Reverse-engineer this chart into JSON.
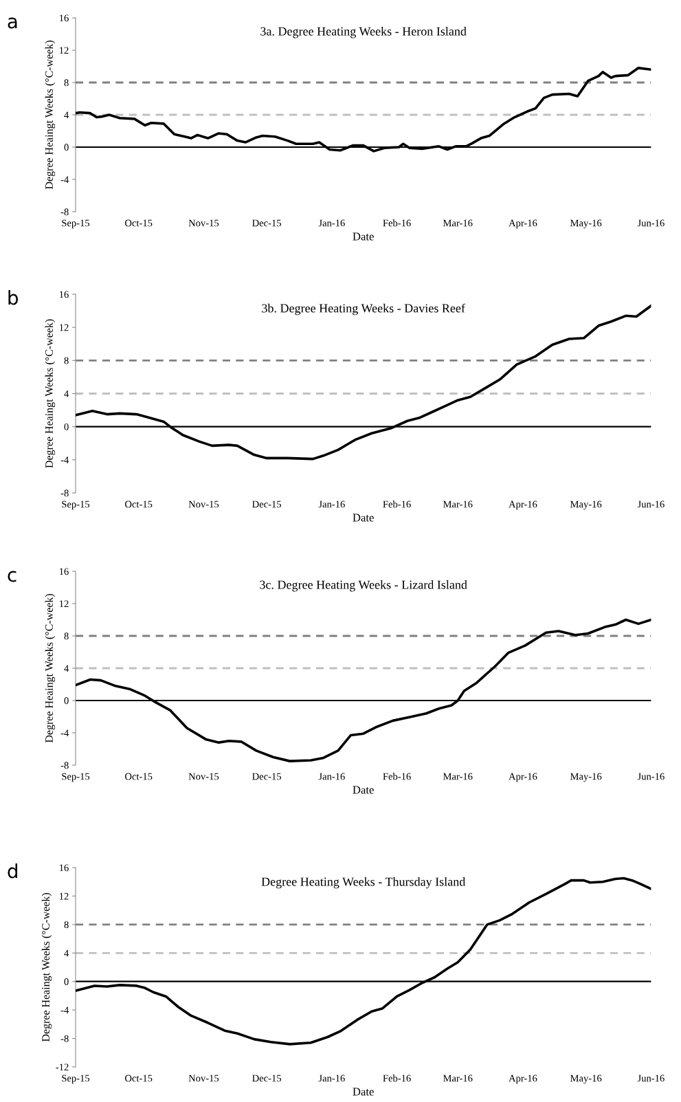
{
  "chart_data": [
    {
      "type": "line",
      "title": "3a. Degree Heating Weeks - Heron Island",
      "xlabel": "Date",
      "ylabel": "Degree Heaingt Weeks (°C-week)",
      "annotations": [
        "a"
      ],
      "ylim": [
        -8,
        16
      ],
      "yticks": [
        -8,
        -4,
        0,
        4,
        8,
        12,
        16
      ],
      "xlim": [
        "2015-09-01",
        "2016-06-01"
      ],
      "xticks": [
        {
          "value": "2015-09-01",
          "label": "Sep-15"
        },
        {
          "value": "2015-10-01",
          "label": "Oct-15"
        },
        {
          "value": "2015-11-01",
          "label": "Nov-15"
        },
        {
          "value": "2015-12-01",
          "label": "Dec-15"
        },
        {
          "value": "2016-01-01",
          "label": "Jan-16"
        },
        {
          "value": "2016-02-01",
          "label": "Feb-16"
        },
        {
          "value": "2016-03-01",
          "label": "Mar-16"
        },
        {
          "value": "2016-04-01",
          "label": "Apr-16"
        },
        {
          "value": "2016-05-01",
          "label": "May-16"
        },
        {
          "value": "2016-06-01",
          "label": "Jun-16"
        }
      ],
      "grid": false,
      "legend": false,
      "marker": "none",
      "line_style": "solid",
      "ref_lines": [
        {
          "axis": "y",
          "value": 0,
          "color": "#000000",
          "line_style": "solid"
        },
        {
          "axis": "y",
          "value": 4,
          "color": "#c0c0c0",
          "line_style": "dashed"
        },
        {
          "axis": "y",
          "value": 8,
          "color": "#808080",
          "line_style": "dashed"
        }
      ],
      "series": [
        {
          "color": "#000000",
          "x": [
            "2015-09-01",
            "2015-09-03",
            "2015-09-08",
            "2015-09-11",
            "2015-09-14",
            "2015-09-17",
            "2015-09-22",
            "2015-09-29",
            "2015-10-04",
            "2015-10-07",
            "2015-10-13",
            "2015-10-18",
            "2015-10-23",
            "2015-10-26",
            "2015-10-29",
            "2015-11-03",
            "2015-11-08",
            "2015-11-12",
            "2015-11-17",
            "2015-11-21",
            "2015-11-26",
            "2015-11-29",
            "2015-12-05",
            "2015-12-11",
            "2015-12-15",
            "2015-12-23",
            "2015-12-26",
            "2015-12-31",
            "2016-01-05",
            "2016-01-11",
            "2016-01-16",
            "2016-01-21",
            "2016-01-26",
            "2016-02-02",
            "2016-02-04",
            "2016-02-07",
            "2016-02-13",
            "2016-02-21",
            "2016-02-25",
            "2016-02-29",
            "2016-03-05",
            "2016-03-08",
            "2016-03-12",
            "2016-03-16",
            "2016-03-23",
            "2016-03-28",
            "2016-04-03",
            "2016-04-07",
            "2016-04-11",
            "2016-04-15",
            "2016-04-23",
            "2016-04-27",
            "2016-05-02",
            "2016-05-07",
            "2016-05-09",
            "2016-05-13",
            "2016-05-15",
            "2016-05-21",
            "2016-05-26",
            "2016-06-01"
          ],
          "values": [
            4.2,
            4.3,
            4.2,
            3.7,
            3.8,
            4.0,
            3.6,
            3.5,
            2.7,
            3.0,
            2.9,
            1.6,
            1.3,
            1.1,
            1.5,
            1.1,
            1.7,
            1.6,
            0.8,
            0.6,
            1.2,
            1.4,
            1.3,
            0.8,
            0.4,
            0.4,
            0.6,
            -0.3,
            -0.4,
            0.2,
            0.2,
            -0.5,
            -0.1,
            0.0,
            0.4,
            -0.1,
            -0.2,
            0.1,
            -0.3,
            0.1,
            0.1,
            0.5,
            1.1,
            1.4,
            2.9,
            3.7,
            4.4,
            4.8,
            6.1,
            6.5,
            6.6,
            6.3,
            8.2,
            8.8,
            9.3,
            8.6,
            8.8,
            8.9,
            9.8,
            9.6
          ]
        }
      ]
    },
    {
      "type": "line",
      "title": "3b. Degree Heating Weeks - Davies Reef",
      "xlabel": "Date",
      "ylabel": "Degree Heaingt Weeks (°C-week)",
      "annotations": [
        "b"
      ],
      "ylim": [
        -8,
        16
      ],
      "yticks": [
        -8,
        -4,
        0,
        4,
        8,
        12,
        16
      ],
      "xlim": [
        "2015-09-01",
        "2016-06-01"
      ],
      "xticks": [
        {
          "value": "2015-09-01",
          "label": "Sep-15"
        },
        {
          "value": "2015-10-01",
          "label": "Oct-15"
        },
        {
          "value": "2015-11-01",
          "label": "Nov-15"
        },
        {
          "value": "2015-12-01",
          "label": "Dec-15"
        },
        {
          "value": "2016-01-01",
          "label": "Jan-16"
        },
        {
          "value": "2016-02-01",
          "label": "Feb-16"
        },
        {
          "value": "2016-03-01",
          "label": "Mar-16"
        },
        {
          "value": "2016-04-01",
          "label": "Apr-16"
        },
        {
          "value": "2016-05-01",
          "label": "May-16"
        },
        {
          "value": "2016-06-01",
          "label": "Jun-16"
        }
      ],
      "grid": false,
      "legend": false,
      "marker": "none",
      "line_style": "solid",
      "ref_lines": [
        {
          "axis": "y",
          "value": 0,
          "color": "#000000",
          "line_style": "solid"
        },
        {
          "axis": "y",
          "value": 4,
          "color": "#c0c0c0",
          "line_style": "dashed"
        },
        {
          "axis": "y",
          "value": 8,
          "color": "#808080",
          "line_style": "dashed"
        }
      ],
      "series": [
        {
          "color": "#000000",
          "x": [
            "2015-09-01",
            "2015-09-09",
            "2015-09-16",
            "2015-09-22",
            "2015-09-30",
            "2015-10-06",
            "2015-10-13",
            "2015-10-16",
            "2015-10-22",
            "2015-10-30",
            "2015-11-05",
            "2015-11-13",
            "2015-11-17",
            "2015-11-25",
            "2015-12-01",
            "2015-12-11",
            "2015-12-23",
            "2015-12-28",
            "2016-01-04",
            "2016-01-12",
            "2016-01-20",
            "2016-01-29",
            "2016-02-06",
            "2016-02-12",
            "2016-02-18",
            "2016-02-24",
            "2016-03-01",
            "2016-03-07",
            "2016-03-15",
            "2016-03-21",
            "2016-03-29",
            "2016-04-07",
            "2016-04-15",
            "2016-04-23",
            "2016-04-30",
            "2016-05-07",
            "2016-05-13",
            "2016-05-20",
            "2016-05-25",
            "2016-06-01"
          ],
          "values": [
            1.4,
            1.9,
            1.5,
            1.6,
            1.5,
            1.1,
            0.6,
            0.0,
            -1.0,
            -1.8,
            -2.3,
            -2.2,
            -2.3,
            -3.4,
            -3.8,
            -3.8,
            -3.9,
            -3.5,
            -2.8,
            -1.6,
            -0.8,
            -0.2,
            0.7,
            1.1,
            1.8,
            2.5,
            3.2,
            3.6,
            4.8,
            5.7,
            7.5,
            8.5,
            9.9,
            10.6,
            10.7,
            12.2,
            12.7,
            13.4,
            13.3,
            14.6
          ]
        }
      ]
    },
    {
      "type": "line",
      "title": "3c. Degree Heating Weeks - Lizard Island",
      "xlabel": "Date",
      "ylabel": "Degree Heaingt Weeks (°C-week)",
      "annotations": [
        "c"
      ],
      "ylim": [
        -8,
        16
      ],
      "yticks": [
        -8,
        -4,
        0,
        4,
        8,
        12,
        16
      ],
      "xlim": [
        "2015-09-01",
        "2016-06-01"
      ],
      "xticks": [
        {
          "value": "2015-09-01",
          "label": "Sep-15"
        },
        {
          "value": "2015-10-01",
          "label": "Oct-15"
        },
        {
          "value": "2015-11-01",
          "label": "Nov-15"
        },
        {
          "value": "2015-12-01",
          "label": "Dec-15"
        },
        {
          "value": "2016-01-01",
          "label": "Jan-16"
        },
        {
          "value": "2016-02-01",
          "label": "Feb-16"
        },
        {
          "value": "2016-03-01",
          "label": "Mar-16"
        },
        {
          "value": "2016-04-01",
          "label": "Apr-16"
        },
        {
          "value": "2016-05-01",
          "label": "May-16"
        },
        {
          "value": "2016-06-01",
          "label": "Jun-16"
        }
      ],
      "grid": false,
      "legend": false,
      "marker": "none",
      "line_style": "solid",
      "ref_lines": [
        {
          "axis": "y",
          "value": 0,
          "color": "#000000",
          "line_style": "solid"
        },
        {
          "axis": "y",
          "value": 4,
          "color": "#c0c0c0",
          "line_style": "dashed"
        },
        {
          "axis": "y",
          "value": 8,
          "color": "#808080",
          "line_style": "dashed"
        }
      ],
      "series": [
        {
          "color": "#000000",
          "x": [
            "2015-09-01",
            "2015-09-08",
            "2015-09-13",
            "2015-09-20",
            "2015-09-27",
            "2015-10-04",
            "2015-10-09",
            "2015-10-16",
            "2015-10-24",
            "2015-11-02",
            "2015-11-08",
            "2015-11-13",
            "2015-11-19",
            "2015-11-26",
            "2015-12-04",
            "2015-12-12",
            "2015-12-22",
            "2015-12-28",
            "2016-01-04",
            "2016-01-10",
            "2016-01-16",
            "2016-01-22",
            "2016-01-30",
            "2016-02-08",
            "2016-02-15",
            "2016-02-21",
            "2016-02-27",
            "2016-03-01",
            "2016-03-04",
            "2016-03-10",
            "2016-03-19",
            "2016-03-25",
            "2016-04-02",
            "2016-04-12",
            "2016-04-18",
            "2016-04-26",
            "2016-05-02",
            "2016-05-10",
            "2016-05-15",
            "2016-05-20",
            "2016-05-26",
            "2016-06-01"
          ],
          "values": [
            1.9,
            2.6,
            2.5,
            1.8,
            1.4,
            0.6,
            -0.2,
            -1.2,
            -3.4,
            -4.8,
            -5.2,
            -5.0,
            -5.1,
            -6.2,
            -7.0,
            -7.5,
            -7.4,
            -7.1,
            -6.2,
            -4.3,
            -4.1,
            -3.3,
            -2.5,
            -2.0,
            -1.6,
            -1.0,
            -0.6,
            0.0,
            1.2,
            2.2,
            4.3,
            5.9,
            6.8,
            8.4,
            8.6,
            8.1,
            8.3,
            9.1,
            9.4,
            10.0,
            9.5,
            10.0
          ]
        }
      ]
    },
    {
      "type": "line",
      "title": "Degree Heating Weeks - Thursday Island",
      "xlabel": "Date",
      "ylabel": "Degree Heaingt Weeks (°C-week)",
      "annotations": [
        "d"
      ],
      "ylim": [
        -12,
        16
      ],
      "yticks": [
        -12,
        -8,
        -4,
        0,
        4,
        8,
        12,
        16
      ],
      "xlim": [
        "2015-09-01",
        "2016-06-01"
      ],
      "xticks": [
        {
          "value": "2015-09-01",
          "label": "Sep-15"
        },
        {
          "value": "2015-10-01",
          "label": "Oct-15"
        },
        {
          "value": "2015-11-01",
          "label": "Nov-15"
        },
        {
          "value": "2015-12-01",
          "label": "Dec-15"
        },
        {
          "value": "2016-01-01",
          "label": "Jan-16"
        },
        {
          "value": "2016-02-01",
          "label": "Feb-16"
        },
        {
          "value": "2016-03-01",
          "label": "Mar-16"
        },
        {
          "value": "2016-04-01",
          "label": "Apr-16"
        },
        {
          "value": "2016-05-01",
          "label": "May-16"
        },
        {
          "value": "2016-06-01",
          "label": "Jun-16"
        }
      ],
      "grid": false,
      "legend": false,
      "marker": "none",
      "line_style": "solid",
      "ref_lines": [
        {
          "axis": "y",
          "value": 0,
          "color": "#000000",
          "line_style": "solid"
        },
        {
          "axis": "y",
          "value": 4,
          "color": "#c0c0c0",
          "line_style": "dashed"
        },
        {
          "axis": "y",
          "value": 8,
          "color": "#808080",
          "line_style": "dashed"
        }
      ],
      "series": [
        {
          "color": "#000000",
          "x": [
            "2015-09-01",
            "2015-09-10",
            "2015-09-16",
            "2015-09-22",
            "2015-09-30",
            "2015-10-04",
            "2015-10-08",
            "2015-10-14",
            "2015-10-20",
            "2015-10-26",
            "2015-11-03",
            "2015-11-11",
            "2015-11-17",
            "2015-11-25",
            "2015-12-03",
            "2015-12-12",
            "2015-12-22",
            "2015-12-30",
            "2016-01-05",
            "2016-01-13",
            "2016-01-20",
            "2016-01-25",
            "2016-02-01",
            "2016-02-07",
            "2016-02-13",
            "2016-02-19",
            "2016-02-25",
            "2016-03-01",
            "2016-03-07",
            "2016-03-15",
            "2016-03-21",
            "2016-03-27",
            "2016-04-04",
            "2016-04-12",
            "2016-04-21",
            "2016-04-24",
            "2016-04-30",
            "2016-05-03",
            "2016-05-09",
            "2016-05-15",
            "2016-05-19",
            "2016-05-23",
            "2016-05-27",
            "2016-06-01"
          ],
          "values": [
            -1.3,
            -0.6,
            -0.7,
            -0.5,
            -0.6,
            -0.9,
            -1.5,
            -2.1,
            -3.6,
            -4.8,
            -5.8,
            -6.9,
            -7.3,
            -8.1,
            -8.5,
            -8.8,
            -8.6,
            -7.8,
            -7.0,
            -5.4,
            -4.2,
            -3.8,
            -2.1,
            -1.2,
            -0.2,
            0.6,
            1.8,
            2.7,
            4.5,
            8.0,
            8.6,
            9.5,
            11.1,
            12.3,
            13.7,
            14.2,
            14.2,
            13.9,
            14.0,
            14.4,
            14.5,
            14.2,
            13.7,
            13.0
          ]
        }
      ]
    }
  ]
}
